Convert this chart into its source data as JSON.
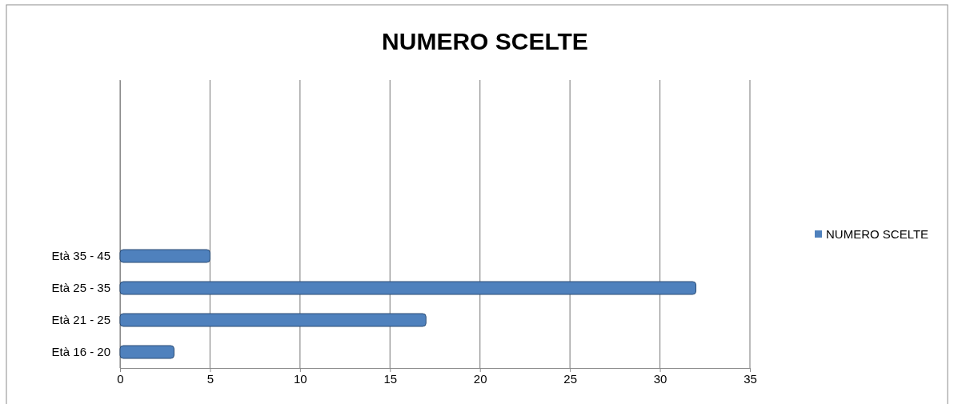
{
  "chart_data": {
    "type": "bar",
    "orientation": "horizontal",
    "title": "NUMERO SCELTE",
    "categories": [
      null,
      null,
      null,
      null,
      null,
      "Età 35 - 45",
      "Età 25 - 35",
      "Età 21 - 25",
      "Età 16 - 20"
    ],
    "series": [
      {
        "name": "NUMERO SCELTE",
        "color": "#4f81bd",
        "values": [
          null,
          null,
          null,
          null,
          null,
          5,
          32,
          17,
          3
        ]
      }
    ],
    "xlim": [
      0,
      35
    ],
    "xticks": [
      0,
      5,
      10,
      15,
      20,
      25,
      30,
      35
    ],
    "grid": "x",
    "legend": "right"
  }
}
